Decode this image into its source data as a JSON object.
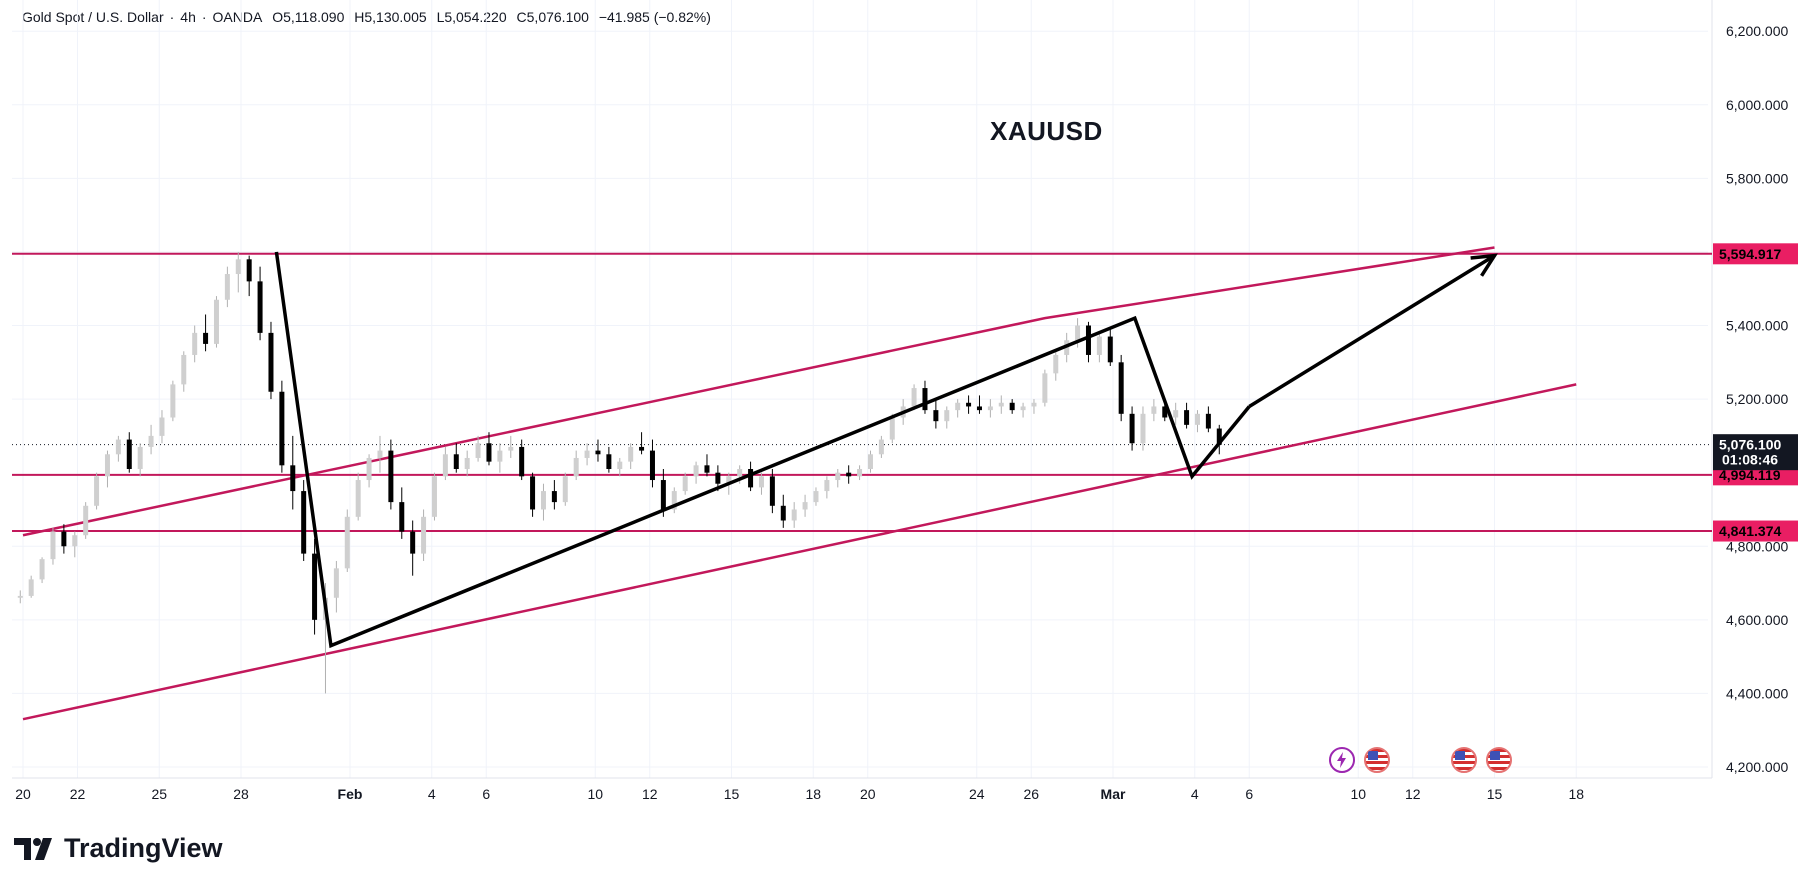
{
  "header": {
    "symbol": "Gold Spot / U.S. Dollar",
    "sep1": "·",
    "timeframe": "4h",
    "sep2": "·",
    "source": "OANDA",
    "open": "O5,118.090",
    "high": "H5,130.005",
    "low": "L5,054.220",
    "close": "C5,076.100",
    "change": "−41.985 (−0.82%)"
  },
  "annotation": {
    "symbol": "XAUUSD"
  },
  "brand": {
    "name": "TradingView"
  },
  "colors": {
    "level_line": "#c2185b",
    "level_label_bg": "#e91e63",
    "trend_arrow": "#000000",
    "current_price_bg": "#131722",
    "candle_up": "#cfcfcf",
    "candle_down": "#000000"
  },
  "events": [
    {
      "icon": "lightning-icon",
      "date": "Mar 5"
    },
    {
      "icon": "us-flag-icon",
      "date": "Mar 5"
    },
    {
      "icon": "us-flag-icon",
      "date": "Mar 10"
    },
    {
      "icon": "us-flag-icon",
      "date": "Mar 11"
    }
  ],
  "chart_data": {
    "type": "candlestick",
    "title": "Gold Spot / U.S. Dollar · 4h · OANDA",
    "ylim": [
      4200,
      6250
    ],
    "y_ticks": [
      "6,200.000",
      "6,000.000",
      "5,800.000",
      "5,600.000",
      "5,400.000",
      "5,200.000",
      "4,800.000",
      "4,600.000",
      "4,400.000",
      "4,200.000"
    ],
    "y_tick_values": [
      6200,
      6000,
      5800,
      5600,
      5400,
      5200,
      4800,
      4600,
      4400,
      4200
    ],
    "x_ticks": [
      {
        "label": "20",
        "day": 0
      },
      {
        "label": "22",
        "day": 2
      },
      {
        "label": "25",
        "day": 5
      },
      {
        "label": "28",
        "day": 8
      },
      {
        "label": "Feb",
        "day": 12,
        "bold": true
      },
      {
        "label": "4",
        "day": 15
      },
      {
        "label": "6",
        "day": 17
      },
      {
        "label": "10",
        "day": 21
      },
      {
        "label": "12",
        "day": 23
      },
      {
        "label": "15",
        "day": 26
      },
      {
        "label": "18",
        "day": 29
      },
      {
        "label": "20",
        "day": 31
      },
      {
        "label": "24",
        "day": 35
      },
      {
        "label": "26",
        "day": 37
      },
      {
        "label": "Mar",
        "day": 40,
        "bold": true
      },
      {
        "label": "4",
        "day": 43
      },
      {
        "label": "6",
        "day": 45
      },
      {
        "label": "10",
        "day": 49
      },
      {
        "label": "12",
        "day": 51
      },
      {
        "label": "15",
        "day": 54
      },
      {
        "label": "18",
        "day": 57
      }
    ],
    "x_range_days": [
      -0.2,
      57.2
    ],
    "horizontal_levels": [
      {
        "label": "5,594.917",
        "value": 5594.917
      },
      {
        "label": "4,994.119",
        "value": 4994.119
      },
      {
        "label": "4,841.374",
        "value": 4841.374
      }
    ],
    "current_price": {
      "label": "5,076.100",
      "value": 5076.1,
      "countdown": "01:08:46"
    },
    "channel_lines": [
      {
        "name": "upper",
        "points": [
          [
            0,
            4830
          ],
          [
            37.5,
            5420
          ],
          [
            54,
            5612
          ]
        ]
      },
      {
        "name": "lower",
        "points": [
          [
            0,
            4330
          ],
          [
            57,
            5240
          ]
        ]
      }
    ],
    "trend_path": [
      [
        9.3,
        5600
      ],
      [
        11.3,
        4530
      ],
      [
        40.8,
        5420
      ],
      [
        42.9,
        4990
      ],
      [
        45,
        5180
      ]
    ],
    "projection_arrow": [
      [
        45,
        5180
      ],
      [
        54,
        5590
      ]
    ],
    "candles": [
      [
        -0.1,
        4660,
        4680,
        4645,
        4665
      ],
      [
        0.3,
        4665,
        4720,
        4660,
        4710
      ],
      [
        0.7,
        4710,
        4770,
        4700,
        4765
      ],
      [
        1.1,
        4765,
        4850,
        4750,
        4840
      ],
      [
        1.5,
        4840,
        4860,
        4780,
        4800
      ],
      [
        1.9,
        4800,
        4840,
        4770,
        4830
      ],
      [
        2.3,
        4830,
        4920,
        4820,
        4910
      ],
      [
        2.7,
        4910,
        5000,
        4900,
        4990
      ],
      [
        3.1,
        4990,
        5060,
        4960,
        5050
      ],
      [
        3.5,
        5050,
        5100,
        5030,
        5090
      ],
      [
        3.9,
        5090,
        5110,
        5000,
        5010
      ],
      [
        4.3,
        5010,
        5080,
        4990,
        5070
      ],
      [
        4.7,
        5070,
        5130,
        5050,
        5100
      ],
      [
        5.1,
        5100,
        5170,
        5080,
        5150
      ],
      [
        5.5,
        5150,
        5250,
        5140,
        5240
      ],
      [
        5.9,
        5240,
        5330,
        5220,
        5320
      ],
      [
        6.3,
        5320,
        5400,
        5300,
        5380
      ],
      [
        6.7,
        5380,
        5430,
        5330,
        5350
      ],
      [
        7.1,
        5350,
        5480,
        5340,
        5470
      ],
      [
        7.5,
        5470,
        5560,
        5450,
        5540
      ],
      [
        7.9,
        5540,
        5600,
        5490,
        5580
      ],
      [
        8.3,
        5580,
        5590,
        5480,
        5520
      ],
      [
        8.7,
        5520,
        5560,
        5360,
        5380
      ],
      [
        9.1,
        5380,
        5410,
        5200,
        5220
      ],
      [
        9.5,
        5220,
        5250,
        5000,
        5020
      ],
      [
        9.9,
        5020,
        5100,
        4900,
        4950
      ],
      [
        10.3,
        4950,
        4980,
        4760,
        4780
      ],
      [
        10.7,
        4780,
        4820,
        4560,
        4600
      ],
      [
        11.1,
        4600,
        4700,
        4400,
        4660
      ],
      [
        11.5,
        4660,
        4760,
        4620,
        4740
      ],
      [
        11.9,
        4740,
        4900,
        4730,
        4880
      ],
      [
        12.3,
        4880,
        5000,
        4870,
        4980
      ],
      [
        12.7,
        4980,
        5050,
        4960,
        5040
      ],
      [
        13.1,
        5040,
        5100,
        5000,
        5060
      ],
      [
        13.5,
        5060,
        5090,
        4900,
        4920
      ],
      [
        13.9,
        4920,
        4960,
        4820,
        4840
      ],
      [
        14.3,
        4840,
        4870,
        4720,
        4780
      ],
      [
        14.7,
        4780,
        4900,
        4760,
        4880
      ],
      [
        15.1,
        4880,
        5000,
        4870,
        4990
      ],
      [
        15.5,
        4990,
        5070,
        4980,
        5050
      ],
      [
        15.9,
        5050,
        5080,
        5000,
        5010
      ],
      [
        16.3,
        5010,
        5060,
        4990,
        5040
      ],
      [
        16.7,
        5040,
        5100,
        5030,
        5080
      ],
      [
        17.1,
        5080,
        5110,
        5020,
        5030
      ],
      [
        17.5,
        5030,
        5080,
        5000,
        5060
      ],
      [
        17.9,
        5060,
        5100,
        5040,
        5070
      ],
      [
        18.3,
        5070,
        5090,
        4980,
        4990
      ],
      [
        18.7,
        4990,
        5000,
        4880,
        4900
      ],
      [
        19.1,
        4900,
        4970,
        4870,
        4950
      ],
      [
        19.5,
        4950,
        4980,
        4900,
        4920
      ],
      [
        19.9,
        4920,
        5000,
        4910,
        4990
      ],
      [
        20.3,
        4990,
        5060,
        4980,
        5040
      ],
      [
        20.7,
        5040,
        5080,
        5020,
        5060
      ],
      [
        21.1,
        5060,
        5090,
        5030,
        5050
      ],
      [
        21.5,
        5050,
        5070,
        5000,
        5010
      ],
      [
        21.9,
        5010,
        5040,
        4990,
        5030
      ],
      [
        22.3,
        5030,
        5080,
        5010,
        5070
      ],
      [
        22.7,
        5070,
        5110,
        5050,
        5060
      ],
      [
        23.1,
        5060,
        5090,
        4960,
        4980
      ],
      [
        23.5,
        4980,
        5010,
        4880,
        4900
      ],
      [
        23.9,
        4900,
        4960,
        4890,
        4950
      ],
      [
        24.3,
        4950,
        5000,
        4940,
        4990
      ],
      [
        24.7,
        4990,
        5030,
        4970,
        5020
      ],
      [
        25.1,
        5020,
        5050,
        4990,
        5000
      ],
      [
        25.5,
        5000,
        5020,
        4950,
        4970
      ],
      [
        25.9,
        4970,
        5000,
        4940,
        4990
      ],
      [
        26.3,
        4990,
        5020,
        4970,
        5010
      ],
      [
        26.7,
        5010,
        5030,
        4950,
        4960
      ],
      [
        27.1,
        4960,
        5000,
        4940,
        4990
      ],
      [
        27.5,
        4990,
        5010,
        4890,
        4910
      ],
      [
        27.9,
        4910,
        4940,
        4850,
        4870
      ],
      [
        28.3,
        4870,
        4920,
        4850,
        4900
      ],
      [
        28.7,
        4900,
        4940,
        4880,
        4920
      ],
      [
        29.1,
        4920,
        4960,
        4910,
        4950
      ],
      [
        29.5,
        4950,
        4990,
        4930,
        4980
      ],
      [
        29.9,
        4980,
        5010,
        4960,
        5000
      ],
      [
        30.3,
        5000,
        5020,
        4970,
        4990
      ],
      [
        30.7,
        4990,
        5020,
        4980,
        5010
      ],
      [
        31.1,
        5010,
        5060,
        5000,
        5050
      ],
      [
        31.5,
        5050,
        5100,
        5040,
        5090
      ],
      [
        31.9,
        5090,
        5160,
        5080,
        5150
      ],
      [
        32.3,
        5150,
        5200,
        5130,
        5180
      ],
      [
        32.7,
        5180,
        5240,
        5170,
        5230
      ],
      [
        33.1,
        5230,
        5250,
        5160,
        5170
      ],
      [
        33.5,
        5170,
        5200,
        5120,
        5140
      ],
      [
        33.9,
        5140,
        5180,
        5120,
        5170
      ],
      [
        34.3,
        5170,
        5200,
        5150,
        5190
      ],
      [
        34.7,
        5190,
        5210,
        5160,
        5180
      ],
      [
        35.1,
        5180,
        5210,
        5160,
        5170
      ],
      [
        35.5,
        5170,
        5200,
        5150,
        5180
      ],
      [
        35.9,
        5180,
        5210,
        5160,
        5190
      ],
      [
        36.3,
        5190,
        5200,
        5160,
        5170
      ],
      [
        36.7,
        5170,
        5190,
        5150,
        5180
      ],
      [
        37.1,
        5180,
        5200,
        5160,
        5190
      ],
      [
        37.5,
        5190,
        5280,
        5180,
        5270
      ],
      [
        37.9,
        5270,
        5330,
        5250,
        5320
      ],
      [
        38.3,
        5320,
        5380,
        5300,
        5360
      ],
      [
        38.7,
        5360,
        5420,
        5340,
        5400
      ],
      [
        39.1,
        5400,
        5410,
        5300,
        5320
      ],
      [
        39.5,
        5320,
        5380,
        5300,
        5370
      ],
      [
        39.9,
        5370,
        5390,
        5290,
        5300
      ],
      [
        40.3,
        5300,
        5320,
        5140,
        5160
      ],
      [
        40.7,
        5160,
        5180,
        5060,
        5080
      ],
      [
        41.1,
        5080,
        5180,
        5060,
        5160
      ],
      [
        41.5,
        5160,
        5200,
        5140,
        5180
      ],
      [
        41.9,
        5180,
        5200,
        5140,
        5150
      ],
      [
        42.3,
        5150,
        5190,
        5130,
        5170
      ],
      [
        42.7,
        5170,
        5190,
        5120,
        5130
      ],
      [
        43.1,
        5130,
        5170,
        5110,
        5160
      ],
      [
        43.5,
        5160,
        5180,
        5110,
        5120
      ],
      [
        43.9,
        5120,
        5130,
        5050,
        5076
      ]
    ]
  }
}
